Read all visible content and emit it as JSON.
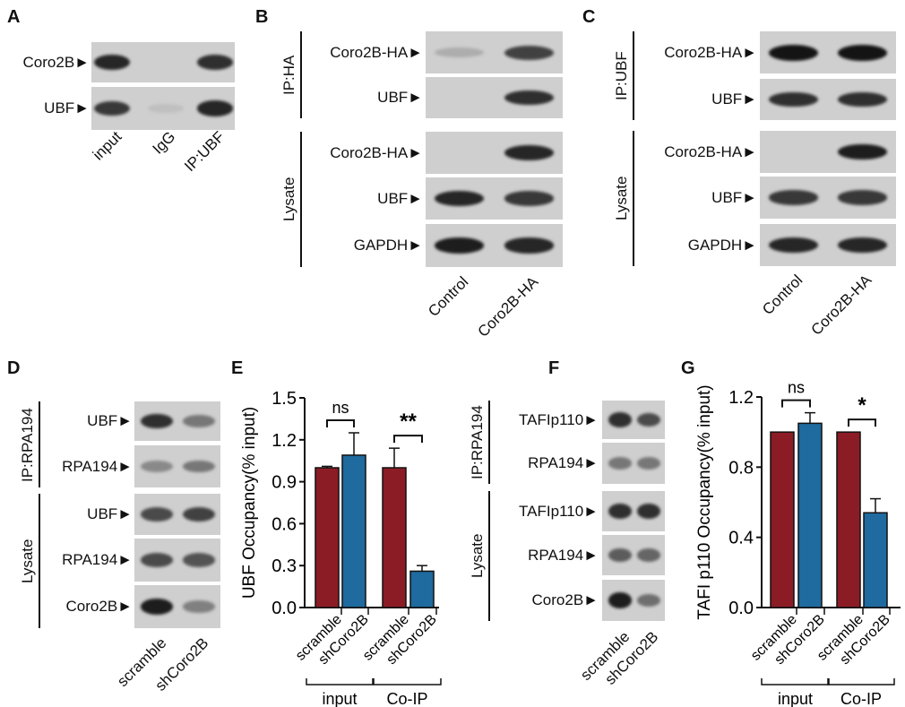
{
  "panels": {
    "A": {
      "letter": "A",
      "rows": [
        "Coro2B►",
        "UBF►"
      ],
      "lanes": [
        "input",
        "IgG",
        "IP:UBF"
      ],
      "bands": [
        [
          0.9,
          0,
          0.85
        ],
        [
          0.8,
          0.05,
          0.9
        ]
      ]
    },
    "B": {
      "letter": "B",
      "groups": [
        "IP:HA",
        "Lysate"
      ],
      "rows": [
        "Coro2B-HA►",
        "UBF►",
        "Coro2B-HA►",
        "UBF►",
        "GAPDH►"
      ],
      "lanes": [
        "Control",
        "Coro2B-HA"
      ],
      "bands": [
        [
          0.15,
          0.75
        ],
        [
          0,
          0.85
        ],
        [
          0,
          0.9
        ],
        [
          0.9,
          0.8
        ],
        [
          0.95,
          0.9
        ]
      ]
    },
    "C": {
      "letter": "C",
      "groups": [
        "IP:UBF",
        "Lysate"
      ],
      "rows": [
        "Coro2B-HA►",
        "UBF►",
        "Coro2B-HA►",
        "UBF►",
        "GAPDH►"
      ],
      "lanes": [
        "Control",
        "Coro2B-HA"
      ],
      "bands": [
        [
          1,
          1
        ],
        [
          0.85,
          0.85
        ],
        [
          0,
          0.95
        ],
        [
          0.8,
          0.8
        ],
        [
          0.9,
          0.9
        ]
      ]
    },
    "D": {
      "letter": "D",
      "groups": [
        "IP:RPA194",
        "Lysate"
      ],
      "rows": [
        "UBF►",
        "RPA194►",
        "UBF►",
        "RPA194►",
        "Coro2B►"
      ],
      "lanes": [
        "scramble",
        "shCoro2B"
      ],
      "bands": [
        [
          0.85,
          0.45
        ],
        [
          0.35,
          0.45
        ],
        [
          0.7,
          0.75
        ],
        [
          0.7,
          0.65
        ],
        [
          0.95,
          0.4
        ]
      ]
    },
    "F": {
      "letter": "F",
      "groups": [
        "IP:RPA194",
        "Lysate"
      ],
      "rows": [
        "TAFIp110►",
        "RPA194►",
        "TAFIp110►",
        "RPA194►",
        "Coro2B►"
      ],
      "lanes": [
        "scramble",
        "shCoro2B"
      ],
      "bands": [
        [
          0.85,
          0.7
        ],
        [
          0.45,
          0.45
        ],
        [
          0.85,
          0.85
        ],
        [
          0.6,
          0.55
        ],
        [
          0.95,
          0.5
        ]
      ]
    },
    "E": {
      "letter": "E"
    },
    "G": {
      "letter": "G"
    }
  },
  "chart_data": [
    {
      "type": "bar",
      "panel": "E",
      "ylabel": "UBF Occupancy(% input)",
      "ylim": [
        0,
        1.5
      ],
      "yticks": [
        "0.0",
        "0.3",
        "0.6",
        "0.9",
        "1.2",
        "1.5"
      ],
      "categories": [
        "scramble",
        "shCoro2B",
        "scramble",
        "shCoro2B"
      ],
      "groups": [
        "input",
        "Co-IP"
      ],
      "values": [
        1.0,
        1.09,
        1.0,
        0.26
      ],
      "errors": [
        0.01,
        0.16,
        0.14,
        0.04
      ],
      "colors": [
        "#8b1c25",
        "#1f6a9e",
        "#8b1c25",
        "#1f6a9e"
      ],
      "significance": [
        "ns",
        "**"
      ]
    },
    {
      "type": "bar",
      "panel": "G",
      "ylabel": "TAFI p110 Occupancy(% input)",
      "ylim": [
        0,
        1.2
      ],
      "yticks": [
        "0.0",
        "0.4",
        "0.8",
        "1.2"
      ],
      "categories": [
        "scramble",
        "shCoro2B",
        "scramble",
        "shCoro2B"
      ],
      "groups": [
        "input",
        "Co-IP"
      ],
      "values": [
        1.0,
        1.05,
        1.0,
        0.54
      ],
      "errors": [
        0,
        0.06,
        0,
        0.08
      ],
      "colors": [
        "#8b1c25",
        "#1f6a9e",
        "#8b1c25",
        "#1f6a9e"
      ],
      "significance": [
        "ns",
        "*"
      ]
    }
  ]
}
